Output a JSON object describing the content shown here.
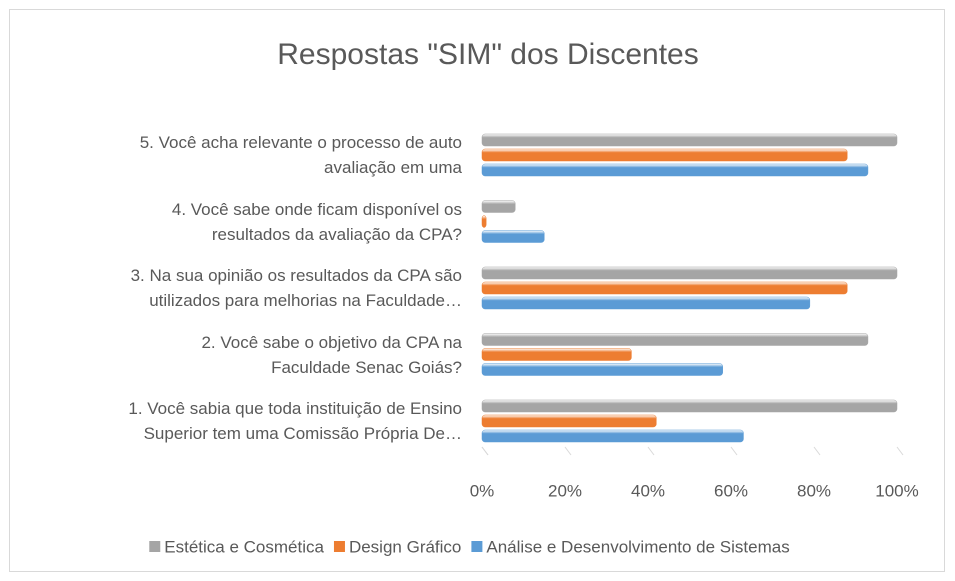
{
  "chart_data": {
    "type": "bar",
    "orientation": "horizontal",
    "title": "Respostas \"SIM\" dos Discentes",
    "categories": [
      "1. Você sabia que toda instituição de Ensino\nSuperior tem uma Comissão Própria De…",
      "2. Você sabe o objetivo da CPA na\nFaculdade Senac Goiás?",
      "3. Na sua opinião os resultados da CPA são\nutilizados para melhorias na Faculdade…",
      "4. Você sabe onde ficam disponível os\nresultados da avaliação da CPA?",
      "5. Você acha relevante o processo de auto\navaliação em uma"
    ],
    "series": [
      {
        "name": "Estética e Cosmética",
        "color": "#a5a5a5",
        "values": [
          100,
          93,
          100,
          8,
          100
        ]
      },
      {
        "name": "Design Gráfico",
        "color": "#ed7d31",
        "values": [
          42,
          36,
          88,
          1,
          88
        ]
      },
      {
        "name": "Análise e Desenvolvimento de Sistemas",
        "color": "#5b9bd5",
        "values": [
          63,
          58,
          79,
          15,
          93
        ]
      }
    ],
    "xlim": [
      0,
      100
    ],
    "xticks": [
      {
        "value": 0,
        "label": "0%"
      },
      {
        "value": 20,
        "label": "20%"
      },
      {
        "value": 40,
        "label": "40%"
      },
      {
        "value": 60,
        "label": "60%"
      },
      {
        "value": 80,
        "label": "80%"
      },
      {
        "value": 100,
        "label": "100%"
      }
    ],
    "legend": "bottom"
  }
}
